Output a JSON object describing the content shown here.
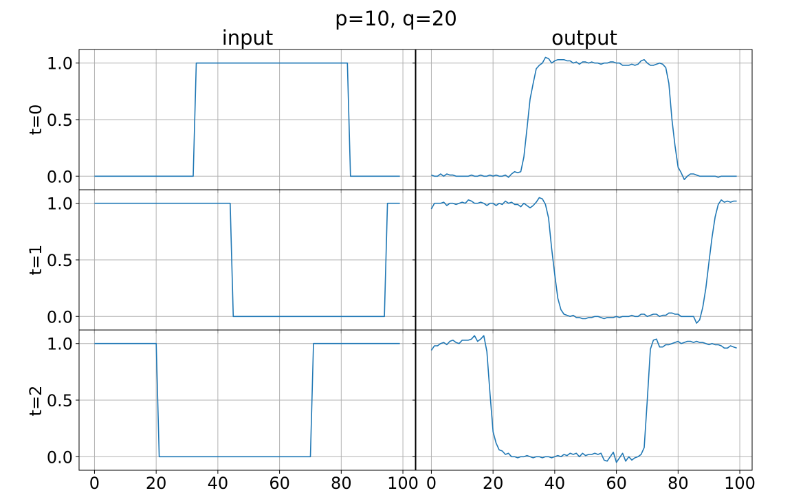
{
  "figure": {
    "suptitle": "p=10, q=20",
    "column_titles": [
      "input",
      "output"
    ],
    "row_labels": [
      "t=0",
      "t=1",
      "t=2"
    ]
  },
  "chart_data": {
    "type": "line",
    "grid": true,
    "layout": "3 rows x 2 columns, shared axes",
    "xlim": [
      -5,
      104
    ],
    "ylim": [
      -0.12,
      1.12
    ],
    "xticks": [
      0,
      20,
      40,
      60,
      80,
      100
    ],
    "xtick_labels": [
      "0",
      "20",
      "40",
      "60",
      "80",
      "100"
    ],
    "yticks": [
      0.0,
      0.5,
      1.0
    ],
    "ytick_labels": [
      "0.0",
      "0.5",
      "1.0"
    ],
    "panels": [
      {
        "row": "t=0",
        "column": "input",
        "x": [
          0,
          32,
          33,
          82,
          83,
          99
        ],
        "y": [
          0,
          0,
          1,
          1,
          0,
          0
        ]
      },
      {
        "row": "t=0",
        "column": "output",
        "x": [
          0,
          1,
          2,
          3,
          4,
          5,
          6,
          7,
          8,
          9,
          10,
          11,
          12,
          13,
          14,
          15,
          16,
          17,
          18,
          19,
          20,
          21,
          22,
          23,
          24,
          25,
          26,
          27,
          28,
          29,
          30,
          31,
          32,
          33,
          34,
          35,
          36,
          37,
          38,
          39,
          40,
          41,
          42,
          43,
          44,
          45,
          46,
          47,
          48,
          49,
          50,
          51,
          52,
          53,
          54,
          55,
          56,
          57,
          58,
          59,
          60,
          61,
          62,
          63,
          64,
          65,
          66,
          67,
          68,
          69,
          70,
          71,
          72,
          73,
          74,
          75,
          76,
          77,
          78,
          79,
          80,
          81,
          82,
          83,
          84,
          85,
          86,
          87,
          88,
          89,
          90,
          91,
          92,
          93,
          94,
          95,
          96,
          97,
          98,
          99
        ],
        "y": [
          0.01,
          0.0,
          0.0,
          0.02,
          0.0,
          0.02,
          0.01,
          0.01,
          0.0,
          0.0,
          0.0,
          0.0,
          0.0,
          0.01,
          0.0,
          0.0,
          0.01,
          0.0,
          0.0,
          0.01,
          0.0,
          0.01,
          0.0,
          0.0,
          0.01,
          -0.01,
          0.02,
          0.04,
          0.03,
          0.04,
          0.17,
          0.42,
          0.68,
          0.82,
          0.95,
          0.98,
          1.0,
          1.05,
          1.04,
          1.0,
          1.02,
          1.03,
          1.03,
          1.03,
          1.02,
          1.02,
          1.0,
          1.01,
          0.99,
          1.01,
          1.01,
          1.0,
          1.01,
          1.0,
          1.0,
          0.99,
          1.0,
          1.0,
          1.01,
          1.01,
          1.0,
          1.0,
          0.98,
          0.98,
          0.98,
          0.99,
          0.98,
          0.99,
          1.02,
          1.03,
          1.0,
          0.98,
          0.98,
          0.99,
          1.0,
          0.99,
          0.96,
          0.82,
          0.5,
          0.27,
          0.08,
          0.03,
          -0.03,
          0.0,
          0.02,
          0.02,
          0.01,
          0.0,
          0.0,
          0.0,
          0.0,
          0.0,
          0.0,
          -0.01,
          0.0,
          0.0,
          0.0,
          0.0,
          0.0,
          0.0
        ]
      },
      {
        "row": "t=1",
        "column": "input",
        "x": [
          0,
          44,
          45,
          94,
          95,
          99
        ],
        "y": [
          1,
          1,
          0,
          0,
          1,
          1
        ]
      },
      {
        "row": "t=1",
        "column": "output",
        "x": [
          0,
          1,
          2,
          3,
          4,
          5,
          6,
          7,
          8,
          9,
          10,
          11,
          12,
          13,
          14,
          15,
          16,
          17,
          18,
          19,
          20,
          21,
          22,
          23,
          24,
          25,
          26,
          27,
          28,
          29,
          30,
          31,
          32,
          33,
          34,
          35,
          36,
          37,
          38,
          39,
          40,
          41,
          42,
          43,
          44,
          45,
          46,
          47,
          48,
          49,
          50,
          51,
          52,
          53,
          54,
          55,
          56,
          57,
          58,
          59,
          60,
          61,
          62,
          63,
          64,
          65,
          66,
          67,
          68,
          69,
          70,
          71,
          72,
          73,
          74,
          75,
          76,
          77,
          78,
          79,
          80,
          81,
          82,
          83,
          84,
          85,
          86,
          87,
          88,
          89,
          90,
          91,
          92,
          93,
          94,
          95,
          96,
          97,
          98,
          99
        ],
        "y": [
          0.95,
          1.0,
          1.0,
          1.0,
          1.01,
          0.98,
          1.0,
          1.0,
          0.99,
          1.0,
          1.01,
          1.0,
          1.03,
          1.02,
          1.0,
          1.0,
          1.01,
          1.0,
          0.98,
          1.0,
          1.0,
          0.98,
          1.0,
          0.99,
          1.02,
          1.0,
          1.01,
          0.99,
          0.99,
          0.97,
          1.0,
          0.98,
          0.96,
          0.98,
          1.01,
          1.05,
          1.04,
          0.99,
          0.87,
          0.6,
          0.37,
          0.16,
          0.06,
          0.02,
          0.01,
          0.0,
          0.01,
          -0.01,
          -0.01,
          -0.02,
          -0.02,
          -0.01,
          -0.01,
          0.0,
          0.0,
          -0.01,
          -0.02,
          -0.01,
          -0.01,
          -0.01,
          0.0,
          -0.01,
          0.0,
          0.0,
          0.0,
          0.01,
          0.0,
          0.0,
          0.02,
          0.02,
          0.0,
          0.01,
          0.02,
          0.02,
          0.0,
          0.01,
          0.01,
          0.03,
          0.03,
          0.02,
          0.02,
          0.0,
          0.0,
          0.0,
          0.0,
          0.0,
          -0.06,
          -0.03,
          0.08,
          0.25,
          0.48,
          0.7,
          0.88,
          0.99,
          1.03,
          1.01,
          1.02,
          1.01,
          1.02,
          1.02
        ]
      },
      {
        "row": "t=2",
        "column": "input",
        "x": [
          0,
          20,
          21,
          70,
          71,
          99
        ],
        "y": [
          1,
          1,
          0,
          0,
          1,
          1
        ]
      },
      {
        "row": "t=2",
        "column": "output",
        "x": [
          0,
          1,
          2,
          3,
          4,
          5,
          6,
          7,
          8,
          9,
          10,
          11,
          12,
          13,
          14,
          15,
          16,
          17,
          18,
          19,
          20,
          21,
          22,
          23,
          24,
          25,
          26,
          27,
          28,
          29,
          30,
          31,
          32,
          33,
          34,
          35,
          36,
          37,
          38,
          39,
          40,
          41,
          42,
          43,
          44,
          45,
          46,
          47,
          48,
          49,
          50,
          51,
          52,
          53,
          54,
          55,
          56,
          57,
          58,
          59,
          60,
          61,
          62,
          63,
          64,
          65,
          66,
          67,
          68,
          69,
          70,
          71,
          72,
          73,
          74,
          75,
          76,
          77,
          78,
          79,
          80,
          81,
          82,
          83,
          84,
          85,
          86,
          87,
          88,
          89,
          90,
          91,
          92,
          93,
          94,
          95,
          96,
          97,
          98,
          99
        ],
        "y": [
          0.94,
          0.98,
          0.98,
          1.0,
          1.01,
          0.99,
          1.02,
          1.03,
          1.01,
          1.0,
          1.03,
          1.03,
          1.03,
          1.04,
          1.07,
          1.02,
          1.04,
          1.07,
          0.93,
          0.56,
          0.22,
          0.12,
          0.06,
          0.05,
          0.02,
          0.03,
          0.0,
          0.0,
          -0.01,
          0.0,
          0.0,
          0.01,
          0.0,
          -0.01,
          0.0,
          0.0,
          -0.01,
          0.0,
          0.0,
          -0.01,
          0.0,
          0.01,
          0.0,
          0.02,
          0.01,
          0.03,
          0.02,
          0.03,
          0.0,
          0.03,
          0.01,
          0.02,
          0.02,
          0.03,
          0.02,
          0.03,
          -0.03,
          -0.04,
          0.0,
          0.04,
          -0.05,
          -0.01,
          0.03,
          -0.04,
          0.0,
          -0.03,
          -0.01,
          0.0,
          0.02,
          0.08,
          0.5,
          0.95,
          1.03,
          1.04,
          0.97,
          0.97,
          0.99,
          0.99,
          1.0,
          1.01,
          1.02,
          1.0,
          1.01,
          1.02,
          1.02,
          1.01,
          1.02,
          1.01,
          1.01,
          1.0,
          0.99,
          1.0,
          0.99,
          0.99,
          0.98,
          0.96,
          0.96,
          0.98,
          0.97,
          0.96
        ]
      }
    ]
  }
}
